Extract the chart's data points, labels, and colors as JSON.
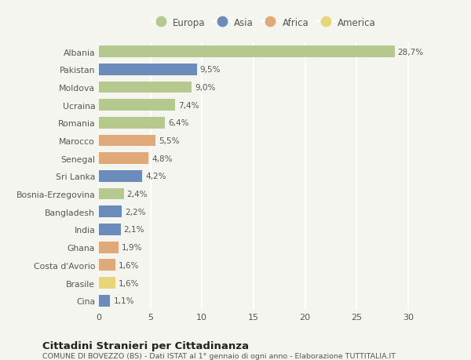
{
  "categories": [
    "Albania",
    "Pakistan",
    "Moldova",
    "Ucraina",
    "Romania",
    "Marocco",
    "Senegal",
    "Sri Lanka",
    "Bosnia-Erzegovina",
    "Bangladesh",
    "India",
    "Ghana",
    "Costa d'Avorio",
    "Brasile",
    "Cina"
  ],
  "values": [
    28.7,
    9.5,
    9.0,
    7.4,
    6.4,
    5.5,
    4.8,
    4.2,
    2.4,
    2.2,
    2.1,
    1.9,
    1.6,
    1.6,
    1.1
  ],
  "labels": [
    "28,7%",
    "9,5%",
    "9,0%",
    "7,4%",
    "6,4%",
    "5,5%",
    "4,8%",
    "4,2%",
    "2,4%",
    "2,2%",
    "2,1%",
    "1,9%",
    "1,6%",
    "1,6%",
    "1,1%"
  ],
  "continents": [
    "Europa",
    "Asia",
    "Europa",
    "Europa",
    "Europa",
    "Africa",
    "Africa",
    "Asia",
    "Europa",
    "Asia",
    "Asia",
    "Africa",
    "Africa",
    "America",
    "Asia"
  ],
  "colors": {
    "Europa": "#b5c98e",
    "Asia": "#6b8cba",
    "Africa": "#e0a97a",
    "America": "#e8d57a"
  },
  "legend_order": [
    "Europa",
    "Asia",
    "Africa",
    "America"
  ],
  "xlim": [
    0,
    32
  ],
  "xticks": [
    0,
    5,
    10,
    15,
    20,
    25,
    30
  ],
  "title": "Cittadini Stranieri per Cittadinanza",
  "subtitle": "COMUNE DI BOVEZZO (BS) - Dati ISTAT al 1° gennaio di ogni anno - Elaborazione TUTTITALIA.IT",
  "background_color": "#f5f5f0",
  "bar_height": 0.65,
  "grid_color": "#ffffff",
  "text_color": "#555555",
  "label_color": "#555555",
  "title_color": "#222222",
  "subtitle_color": "#555555"
}
